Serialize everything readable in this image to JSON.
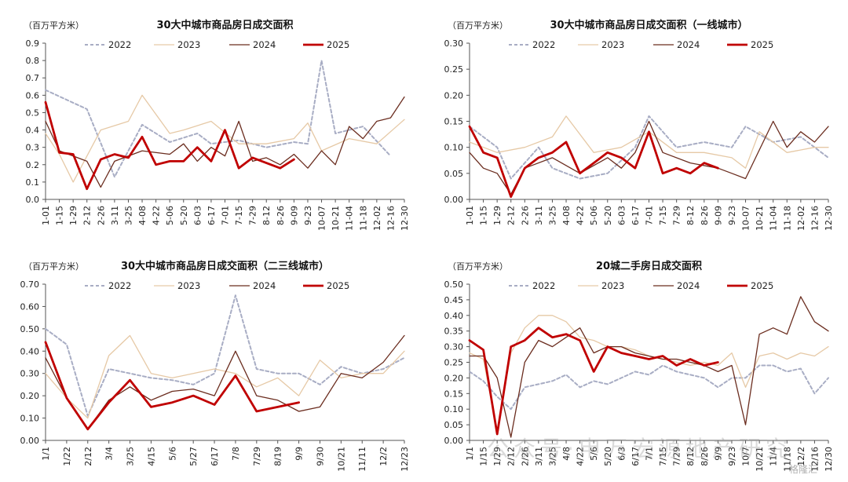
{
  "colors": {
    "s2022": "#a8adc4",
    "s2023": "#e6c9a6",
    "s2024": "#6b2d1f",
    "s2025": "#c00000"
  },
  "watermark": {
    "main": "公众号·申万宏源地产研究",
    "corner": "格隆汇"
  },
  "chart_data": [
    {
      "type": "line",
      "title": "30大中城市商品房日成交面积",
      "unit": "（百万平方米）",
      "ylim": [
        0,
        0.9
      ],
      "yticks": [
        "0.0",
        "0.1",
        "0.2",
        "0.3",
        "0.4",
        "0.5",
        "0.6",
        "0.7",
        "0.8",
        "0.9"
      ],
      "x_labels": [
        "1-01",
        "1-15",
        "1-29",
        "2-12",
        "2-26",
        "3-11",
        "3-25",
        "4-08",
        "4-22",
        "5-06",
        "5-20",
        "6-03",
        "6-17",
        "7-01",
        "7-15",
        "7-29",
        "8-12",
        "8-26",
        "9-09",
        "9-23",
        "10-07",
        "10-21",
        "11-04",
        "11-18",
        "12-02",
        "12-16",
        "12-30"
      ],
      "legend": [
        "2022",
        "2023",
        "2024",
        "2025"
      ],
      "series": [
        {
          "name": "2022",
          "x": [
            0,
            3,
            5,
            7,
            9,
            11,
            12,
            14,
            16,
            18,
            19,
            20,
            21,
            23,
            25
          ],
          "values": [
            0.63,
            0.52,
            0.13,
            0.43,
            0.33,
            0.38,
            0.32,
            0.34,
            0.3,
            0.33,
            0.32,
            0.8,
            0.38,
            0.42,
            0.25
          ]
        },
        {
          "name": "2023",
          "x": [
            0,
            1,
            2,
            4,
            6,
            7,
            9,
            10,
            12,
            14,
            16,
            18,
            19,
            20,
            22,
            24,
            26
          ],
          "values": [
            0.38,
            0.26,
            0.1,
            0.4,
            0.45,
            0.6,
            0.38,
            0.4,
            0.45,
            0.32,
            0.32,
            0.35,
            0.44,
            0.28,
            0.35,
            0.32,
            0.46
          ]
        },
        {
          "name": "2024",
          "x": [
            0,
            1,
            3,
            4,
            5,
            7,
            9,
            10,
            11,
            12,
            13,
            14,
            15,
            16,
            17,
            18,
            19,
            20,
            21,
            22,
            23,
            24,
            25,
            26
          ],
          "values": [
            0.45,
            0.28,
            0.22,
            0.07,
            0.22,
            0.28,
            0.26,
            0.32,
            0.22,
            0.3,
            0.25,
            0.45,
            0.22,
            0.24,
            0.2,
            0.26,
            0.18,
            0.28,
            0.2,
            0.42,
            0.35,
            0.45,
            0.47,
            0.59
          ]
        },
        {
          "name": "2025",
          "x": [
            0,
            1,
            2,
            3,
            4,
            5,
            6,
            7,
            8,
            9,
            10,
            11,
            12,
            13,
            14,
            15,
            16,
            17,
            18
          ],
          "values": [
            0.56,
            0.27,
            0.26,
            0.06,
            0.23,
            0.26,
            0.24,
            0.36,
            0.2,
            0.22,
            0.22,
            0.3,
            0.22,
            0.4,
            0.18,
            0.24,
            0.21,
            0.18,
            0.23
          ]
        }
      ]
    },
    {
      "type": "line",
      "title": "30大中城市商品房日成交面积（一线城市）",
      "unit": "（百万平方米）",
      "ylim": [
        0,
        0.3
      ],
      "yticks": [
        "0.00",
        "0.05",
        "0.10",
        "0.15",
        "0.20",
        "0.25",
        "0.30"
      ],
      "x_labels": [
        "1-01",
        "1-15",
        "1-29",
        "2-12",
        "2-26",
        "3-11",
        "3-25",
        "4-08",
        "4-22",
        "5-06",
        "5-20",
        "6-03",
        "6-17",
        "7-01",
        "7-15",
        "7-29",
        "8-12",
        "8-26",
        "9-09",
        "9-23",
        "10-07",
        "10-21",
        "11-04",
        "11-18",
        "12-02",
        "12-16",
        "12-30"
      ],
      "legend": [
        "2022",
        "2023",
        "2024",
        "2025"
      ],
      "series": [
        {
          "name": "2022",
          "x": [
            0,
            2,
            3,
            5,
            6,
            8,
            10,
            12,
            13,
            15,
            17,
            19,
            20,
            22,
            24,
            26
          ],
          "values": [
            0.14,
            0.1,
            0.04,
            0.1,
            0.06,
            0.04,
            0.05,
            0.1,
            0.16,
            0.1,
            0.11,
            0.1,
            0.14,
            0.11,
            0.12,
            0.08
          ]
        },
        {
          "name": "2023",
          "x": [
            0,
            2,
            4,
            6,
            7,
            9,
            11,
            13,
            15,
            17,
            19,
            20,
            21,
            23,
            25,
            26
          ],
          "values": [
            0.11,
            0.09,
            0.1,
            0.12,
            0.16,
            0.09,
            0.1,
            0.13,
            0.09,
            0.09,
            0.08,
            0.06,
            0.13,
            0.09,
            0.1,
            0.1
          ]
        },
        {
          "name": "2024",
          "x": [
            0,
            1,
            2,
            3,
            4,
            6,
            8,
            10,
            11,
            12,
            13,
            14,
            16,
            18,
            19,
            20,
            22,
            23,
            24,
            25,
            26
          ],
          "values": [
            0.09,
            0.06,
            0.05,
            0.01,
            0.06,
            0.08,
            0.05,
            0.08,
            0.06,
            0.09,
            0.15,
            0.09,
            0.07,
            0.06,
            0.05,
            0.04,
            0.15,
            0.1,
            0.13,
            0.11,
            0.14
          ]
        },
        {
          "name": "2025",
          "x": [
            0,
            1,
            2,
            3,
            4,
            5,
            6,
            7,
            8,
            9,
            10,
            11,
            12,
            13,
            14,
            15,
            16,
            17,
            18
          ],
          "values": [
            0.14,
            0.09,
            0.08,
            0.005,
            0.06,
            0.08,
            0.09,
            0.11,
            0.05,
            0.07,
            0.09,
            0.08,
            0.06,
            0.13,
            0.05,
            0.06,
            0.05,
            0.07,
            0.06
          ]
        }
      ]
    },
    {
      "type": "line",
      "title": "30大中城市商品房日成交面积（二三线城市）",
      "unit": "（百万平方米）",
      "ylim": [
        0,
        0.7
      ],
      "yticks": [
        "0.00",
        "0.10",
        "0.20",
        "0.30",
        "0.40",
        "0.50",
        "0.60",
        "0.70"
      ],
      "x_labels": [
        "1/1",
        "1/22",
        "2/12",
        "3/4",
        "3/25",
        "4/15",
        "5/6",
        "5/27",
        "6/17",
        "7/8",
        "7/29",
        "8/19",
        "9/9",
        "9/30",
        "10/21",
        "11/11",
        "12/2",
        "12/23"
      ],
      "legend": [
        "2022",
        "2023",
        "2024",
        "2025"
      ],
      "series": [
        {
          "name": "2022",
          "x": [
            0,
            1,
            2,
            3,
            4,
            5,
            6,
            7,
            8,
            9,
            10,
            11,
            12,
            13,
            14,
            15,
            16,
            17
          ],
          "values": [
            0.5,
            0.43,
            0.11,
            0.32,
            0.3,
            0.28,
            0.27,
            0.25,
            0.3,
            0.65,
            0.32,
            0.3,
            0.3,
            0.25,
            0.33,
            0.3,
            0.32,
            0.37
          ]
        },
        {
          "name": "2023",
          "x": [
            0,
            1,
            2,
            3,
            4,
            5,
            6,
            7,
            8,
            9,
            10,
            11,
            12,
            13,
            14,
            15,
            16,
            17
          ],
          "values": [
            0.3,
            0.19,
            0.1,
            0.38,
            0.47,
            0.3,
            0.28,
            0.3,
            0.32,
            0.3,
            0.24,
            0.28,
            0.2,
            0.36,
            0.28,
            0.3,
            0.3,
            0.4
          ]
        },
        {
          "name": "2024",
          "x": [
            0,
            1,
            2,
            3,
            4,
            5,
            6,
            7,
            8,
            9,
            10,
            11,
            12,
            13,
            14,
            15,
            16,
            17
          ],
          "values": [
            0.37,
            0.19,
            0.05,
            0.18,
            0.24,
            0.18,
            0.22,
            0.23,
            0.2,
            0.4,
            0.2,
            0.18,
            0.13,
            0.15,
            0.3,
            0.28,
            0.35,
            0.47
          ]
        },
        {
          "name": "2025",
          "x": [
            0,
            1,
            2,
            3,
            4,
            5,
            6,
            7,
            8,
            9,
            10,
            11,
            12
          ],
          "values": [
            0.44,
            0.19,
            0.05,
            0.17,
            0.27,
            0.15,
            0.17,
            0.2,
            0.16,
            0.29,
            0.13,
            0.15,
            0.17
          ]
        }
      ]
    },
    {
      "type": "line",
      "title": "20城二手房日成交面积",
      "unit": "（百万平方米）",
      "ylim": [
        0,
        0.5
      ],
      "yticks": [
        "0.00",
        "0.05",
        "0.10",
        "0.15",
        "0.20",
        "0.25",
        "0.30",
        "0.35",
        "0.40",
        "0.45",
        "0.50"
      ],
      "x_labels": [
        "1/1",
        "1/15",
        "1/29",
        "2/12",
        "2/26",
        "3/11",
        "3/25",
        "4/8",
        "4/22",
        "5/6",
        "5/20",
        "6/3",
        "6/17",
        "7/1",
        "7/15",
        "7/29",
        "8/12",
        "8/26",
        "9/9",
        "9/23",
        "10/7",
        "10/21",
        "11/4",
        "11/18",
        "12/2",
        "12/16",
        "12/30"
      ],
      "legend": [
        "2022",
        "2023",
        "2024",
        "2025"
      ],
      "series": [
        {
          "name": "2022",
          "x": [
            0,
            1,
            2,
            3,
            4,
            5,
            6,
            7,
            8,
            9,
            10,
            11,
            12,
            13,
            14,
            15,
            16,
            17,
            18,
            19,
            20,
            21,
            22,
            23,
            24,
            25,
            26
          ],
          "values": [
            0.22,
            0.19,
            0.14,
            0.1,
            0.17,
            0.18,
            0.19,
            0.21,
            0.17,
            0.19,
            0.18,
            0.2,
            0.22,
            0.21,
            0.24,
            0.22,
            0.21,
            0.2,
            0.17,
            0.2,
            0.2,
            0.24,
            0.24,
            0.22,
            0.23,
            0.15,
            0.2
          ]
        },
        {
          "name": "2023",
          "x": [
            0,
            1,
            2,
            3,
            4,
            5,
            6,
            7,
            8,
            9,
            10,
            11,
            12,
            13,
            14,
            15,
            16,
            17,
            18,
            19,
            20,
            21,
            22,
            23,
            24,
            25,
            26
          ],
          "values": [
            0.28,
            0.26,
            0.03,
            0.28,
            0.36,
            0.4,
            0.4,
            0.38,
            0.33,
            0.32,
            0.3,
            0.3,
            0.29,
            0.27,
            0.26,
            0.25,
            0.24,
            0.25,
            0.24,
            0.28,
            0.17,
            0.27,
            0.28,
            0.26,
            0.28,
            0.27,
            0.3
          ]
        },
        {
          "name": "2024",
          "x": [
            0,
            1,
            2,
            3,
            4,
            5,
            6,
            7,
            8,
            9,
            10,
            11,
            12,
            13,
            14,
            15,
            16,
            17,
            18,
            19,
            20,
            21,
            22,
            23,
            24,
            25,
            26
          ],
          "values": [
            0.27,
            0.27,
            0.2,
            0.01,
            0.25,
            0.32,
            0.3,
            0.33,
            0.36,
            0.28,
            0.3,
            0.3,
            0.28,
            0.27,
            0.26,
            0.26,
            0.25,
            0.24,
            0.22,
            0.24,
            0.05,
            0.34,
            0.36,
            0.34,
            0.46,
            0.38,
            0.35
          ]
        },
        {
          "name": "2025",
          "x": [
            0,
            1,
            2,
            3,
            4,
            5,
            6,
            7,
            8,
            9,
            10,
            11,
            12,
            13,
            14,
            15,
            16,
            17,
            18
          ],
          "values": [
            0.32,
            0.29,
            0.02,
            0.3,
            0.32,
            0.36,
            0.33,
            0.34,
            0.32,
            0.22,
            0.3,
            0.28,
            0.27,
            0.26,
            0.27,
            0.24,
            0.26,
            0.24,
            0.25
          ]
        }
      ]
    }
  ]
}
